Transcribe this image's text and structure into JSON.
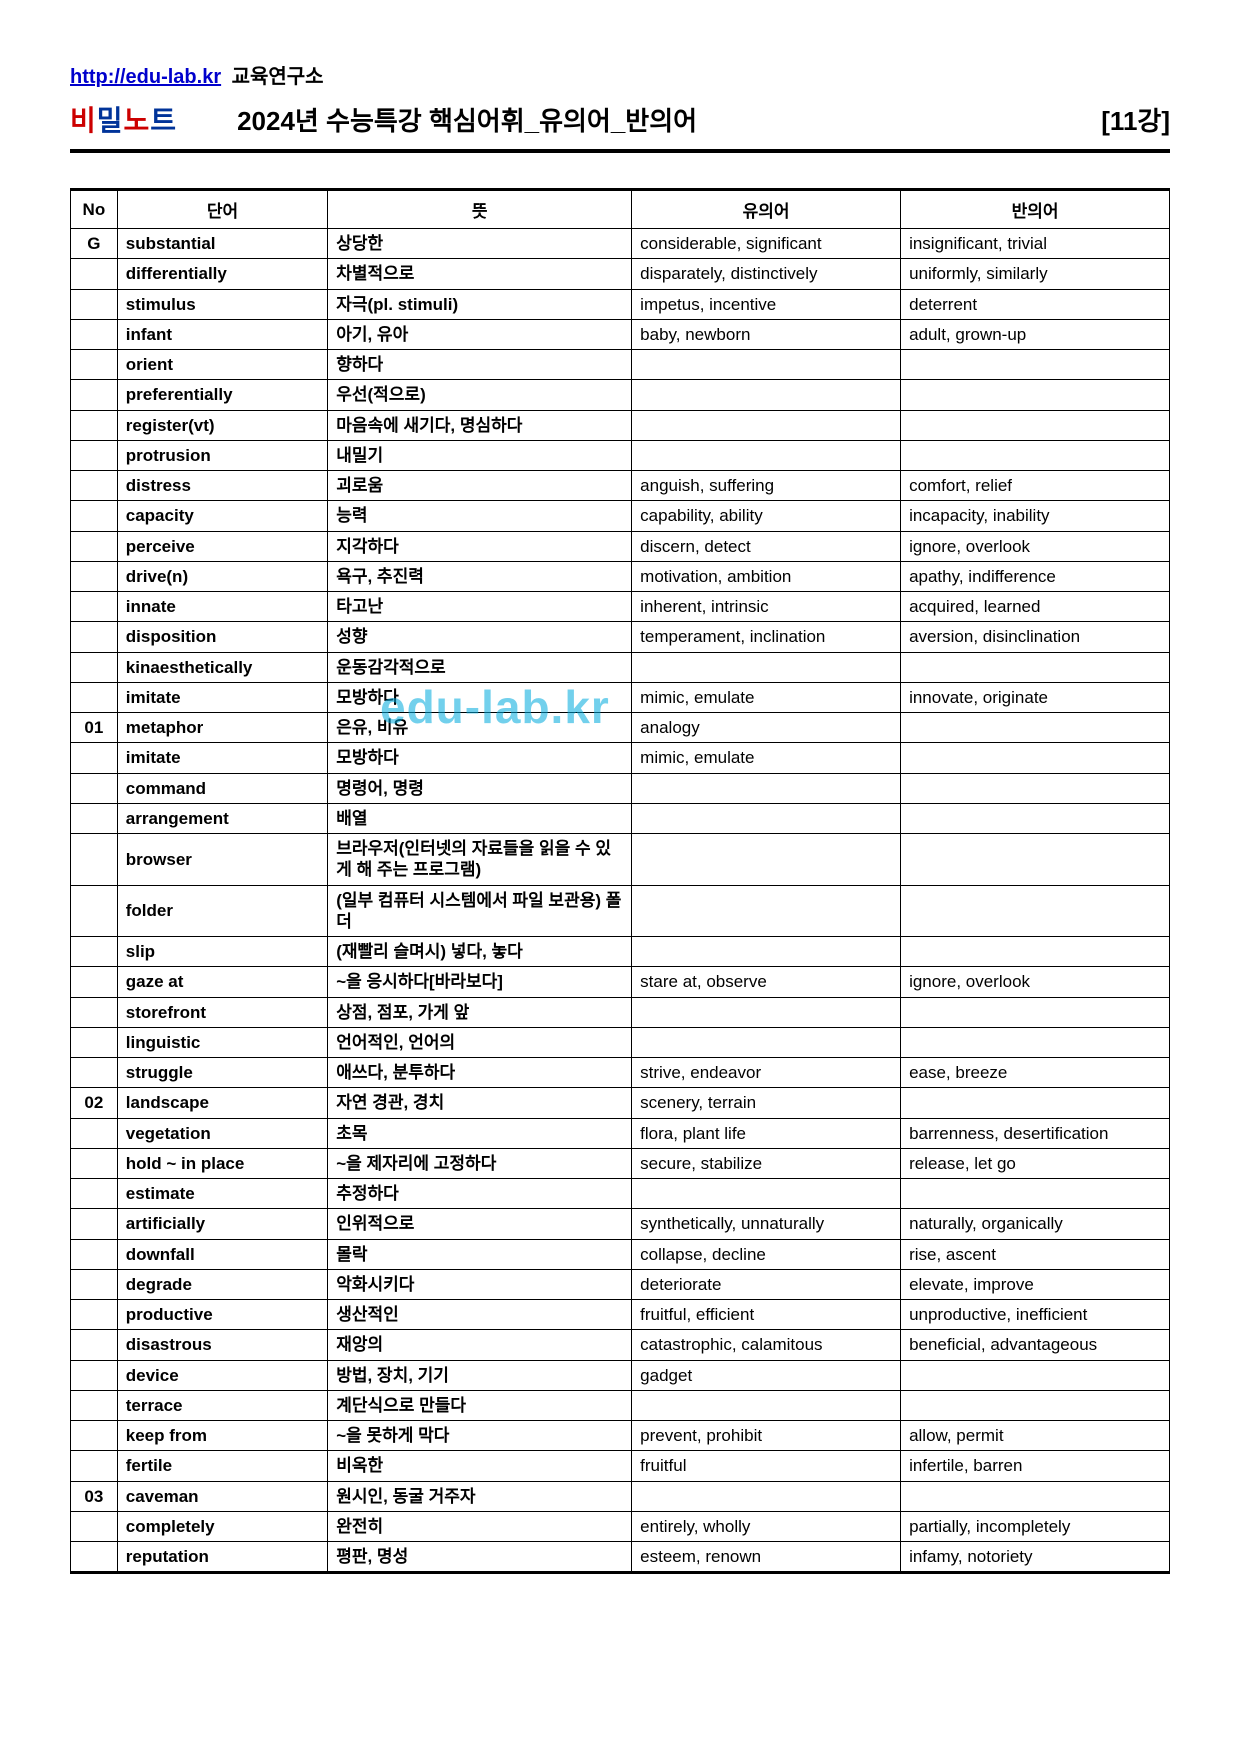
{
  "header": {
    "link": "http://edu-lab.kr",
    "org": "교육연구소",
    "logo_bi": "비",
    "logo_mil": "밀",
    "logo_no": "노",
    "logo_te": "트",
    "title": "2024년  수능특강 핵심어휘_유의어_반의어",
    "lecture": "[11강]"
  },
  "watermark": "edu-lab.kr",
  "columns": {
    "no": "No",
    "word": "단어",
    "meaning": "뜻",
    "synonym": "유의어",
    "antonym": "반의어"
  },
  "rows": [
    {
      "no": "G",
      "word": "substantial",
      "mean": "상당한",
      "syn": "considerable, significant",
      "ant": "insignificant, trivial"
    },
    {
      "no": "",
      "word": "differentially",
      "mean": "차별적으로",
      "syn": "disparately, distinctively",
      "ant": "uniformly, similarly"
    },
    {
      "no": "",
      "word": "stimulus",
      "mean": "자극(pl. stimuli)",
      "syn": "impetus, incentive",
      "ant": "deterrent"
    },
    {
      "no": "",
      "word": "infant",
      "mean": "아기, 유아",
      "syn": "baby, newborn",
      "ant": "adult, grown-up"
    },
    {
      "no": "",
      "word": "orient",
      "mean": "향하다",
      "syn": "",
      "ant": ""
    },
    {
      "no": "",
      "word": "preferentially",
      "mean": "우선(적으로)",
      "syn": "",
      "ant": ""
    },
    {
      "no": "",
      "word": "register(vt)",
      "mean": "마음속에 새기다, 명심하다",
      "syn": "",
      "ant": ""
    },
    {
      "no": "",
      "word": "protrusion",
      "mean": "내밀기",
      "syn": "",
      "ant": ""
    },
    {
      "no": "",
      "word": "distress",
      "mean": "괴로움",
      "syn": "anguish, suffering",
      "ant": "comfort, relief"
    },
    {
      "no": "",
      "word": "capacity",
      "mean": "능력",
      "syn": "capability, ability",
      "ant": "incapacity, inability"
    },
    {
      "no": "",
      "word": "perceive",
      "mean": "지각하다",
      "syn": "discern, detect",
      "ant": "ignore, overlook"
    },
    {
      "no": "",
      "word": "drive(n)",
      "mean": "욕구, 추진력",
      "syn": "motivation, ambition",
      "ant": "apathy, indifference"
    },
    {
      "no": "",
      "word": "innate",
      "mean": "타고난",
      "syn": "inherent, intrinsic",
      "ant": "acquired, learned"
    },
    {
      "no": "",
      "word": "disposition",
      "mean": "성향",
      "syn": "temperament, inclination",
      "ant": "aversion, disinclination"
    },
    {
      "no": "",
      "word": "kinaesthetically",
      "mean": "운동감각적으로",
      "syn": "",
      "ant": ""
    },
    {
      "no": "",
      "word": "imitate",
      "mean": "모방하다",
      "syn": "mimic, emulate",
      "ant": "innovate, originate"
    },
    {
      "no": "01",
      "word": "metaphor",
      "mean": "은유, 비유",
      "syn": "analogy",
      "ant": ""
    },
    {
      "no": "",
      "word": "imitate",
      "mean": "모방하다",
      "syn": "mimic, emulate",
      "ant": ""
    },
    {
      "no": "",
      "word": "command",
      "mean": "명령어, 명령",
      "syn": "",
      "ant": ""
    },
    {
      "no": "",
      "word": "arrangement",
      "mean": "배열",
      "syn": "",
      "ant": ""
    },
    {
      "no": "",
      "word": "browser",
      "mean": "브라우저(인터넷의 자료들을 읽을 수 있게 해 주는 프로그램)",
      "syn": "",
      "ant": ""
    },
    {
      "no": "",
      "word": "folder",
      "mean": "(일부 컴퓨터 시스템에서 파일 보관용) 폴더",
      "syn": "",
      "ant": ""
    },
    {
      "no": "",
      "word": "slip",
      "mean": "(재빨리 슬며시) 넣다, 놓다",
      "syn": "",
      "ant": ""
    },
    {
      "no": "",
      "word": "gaze at",
      "mean": "~을 응시하다[바라보다]",
      "syn": "stare at, observe",
      "ant": "ignore, overlook"
    },
    {
      "no": "",
      "word": "storefront",
      "mean": "상점, 점포, 가게 앞",
      "syn": "",
      "ant": ""
    },
    {
      "no": "",
      "word": "linguistic",
      "mean": "언어적인, 언어의",
      "syn": "",
      "ant": ""
    },
    {
      "no": "",
      "word": "struggle",
      "mean": "애쓰다, 분투하다",
      "syn": "strive, endeavor",
      "ant": "ease, breeze"
    },
    {
      "no": "02",
      "word": "landscape",
      "mean": "자연 경관, 경치",
      "syn": "scenery, terrain",
      "ant": ""
    },
    {
      "no": "",
      "word": "vegetation",
      "mean": "초목",
      "syn": "flora, plant life",
      "ant": "barrenness, desertification"
    },
    {
      "no": "",
      "word": "hold ~ in place",
      "mean": "~을 제자리에 고정하다",
      "syn": "secure, stabilize",
      "ant": "release, let go"
    },
    {
      "no": "",
      "word": "estimate",
      "mean": "추정하다",
      "syn": "",
      "ant": ""
    },
    {
      "no": "",
      "word": "artificially",
      "mean": "인위적으로",
      "syn": "synthetically, unnaturally",
      "ant": "naturally, organically"
    },
    {
      "no": "",
      "word": "downfall",
      "mean": "몰락",
      "syn": "collapse, decline",
      "ant": "rise, ascent"
    },
    {
      "no": "",
      "word": "degrade",
      "mean": "악화시키다",
      "syn": "deteriorate",
      "ant": "elevate, improve"
    },
    {
      "no": "",
      "word": "productive",
      "mean": "생산적인",
      "syn": "fruitful, efficient",
      "ant": "unproductive, inefficient"
    },
    {
      "no": "",
      "word": "disastrous",
      "mean": "재앙의",
      "syn": "catastrophic, calamitous",
      "ant": "beneficial, advantageous"
    },
    {
      "no": "",
      "word": "device",
      "mean": "방법, 장치, 기기",
      "syn": "gadget",
      "ant": ""
    },
    {
      "no": "",
      "word": "terrace",
      "mean": "계단식으로 만들다",
      "syn": "",
      "ant": ""
    },
    {
      "no": "",
      "word": "keep from",
      "mean": "~을 못하게 막다",
      "syn": "prevent, prohibit",
      "ant": "allow, permit"
    },
    {
      "no": "",
      "word": "fertile",
      "mean": "비옥한",
      "syn": "fruitful",
      "ant": "infertile, barren"
    },
    {
      "no": "03",
      "word": "caveman",
      "mean": "원시인, 동굴 거주자",
      "syn": "",
      "ant": ""
    },
    {
      "no": "",
      "word": "completely",
      "mean": "완전히",
      "syn": "entirely, wholly",
      "ant": "partially, incompletely"
    },
    {
      "no": "",
      "word": "reputation",
      "mean": "평판, 명성",
      "syn": "esteem, renown",
      "ant": "infamy, notoriety"
    }
  ]
}
